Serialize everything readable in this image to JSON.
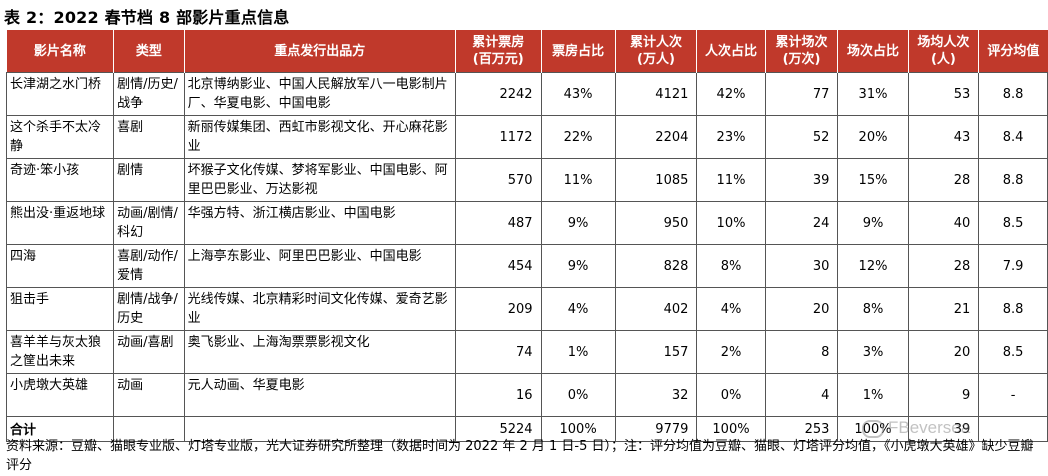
{
  "title": "表 2：2022 春节档 8 部影片重点信息",
  "header": {
    "film": "影片名称",
    "genre": "类型",
    "distributor": "重点发行出品方",
    "box_office": "累计票房\n(百万元)",
    "box_share": "票房占比",
    "admissions": "累计人次\n(万人)",
    "adm_share": "人次占比",
    "screenings": "累计场次\n(万次)",
    "scr_share": "场次占比",
    "per_screen": "场均人次\n(人)",
    "rating": "评分均值"
  },
  "rows": [
    {
      "film": "长津湖之水门桥",
      "genre": "剧情/历史/战争",
      "distributor": "北京博纳影业、中国人民解放军八一电影制片厂、华夏电影、中国电影",
      "box_office": "2242",
      "box_share": "43%",
      "admissions": "4121",
      "adm_share": "42%",
      "screenings": "77",
      "scr_share": "31%",
      "per_screen": "53",
      "rating": "8.8"
    },
    {
      "film": "这个杀手不太冷静",
      "genre": "喜剧",
      "distributor": "新丽传媒集团、西虹市影视文化、开心麻花影业",
      "box_office": "1172",
      "box_share": "22%",
      "admissions": "2204",
      "adm_share": "23%",
      "screenings": "52",
      "scr_share": "20%",
      "per_screen": "43",
      "rating": "8.4"
    },
    {
      "film": "奇迹·笨小孩",
      "genre": "剧情",
      "distributor": "坏猴子文化传媒、梦将军影业、中国电影、阿里巴巴影业、万达影视",
      "box_office": "570",
      "box_share": "11%",
      "admissions": "1085",
      "adm_share": "11%",
      "screenings": "39",
      "scr_share": "15%",
      "per_screen": "28",
      "rating": "8.8"
    },
    {
      "film": "熊出没·重返地球",
      "genre": "动画/剧情/科幻",
      "distributor": "华强方特、浙江横店影业、中国电影",
      "box_office": "487",
      "box_share": "9%",
      "admissions": "950",
      "adm_share": "10%",
      "screenings": "24",
      "scr_share": "9%",
      "per_screen": "40",
      "rating": "8.5"
    },
    {
      "film": "四海",
      "genre": "喜剧/动作/爱情",
      "distributor": "上海亭东影业、阿里巴巴影业、中国电影",
      "box_office": "454",
      "box_share": "9%",
      "admissions": "828",
      "adm_share": "8%",
      "screenings": "30",
      "scr_share": "12%",
      "per_screen": "28",
      "rating": "7.9"
    },
    {
      "film": "狙击手",
      "genre": "剧情/战争/历史",
      "distributor": "光线传媒、北京精彩时间文化传媒、爱奇艺影业",
      "box_office": "209",
      "box_share": "4%",
      "admissions": "402",
      "adm_share": "4%",
      "screenings": "20",
      "scr_share": "8%",
      "per_screen": "21",
      "rating": "8.8"
    },
    {
      "film": "喜羊羊与灰太狼之筐出未来",
      "genre": "动画/喜剧",
      "distributor": "奥飞影业、上海淘票票影视文化",
      "box_office": "74",
      "box_share": "1%",
      "admissions": "157",
      "adm_share": "2%",
      "screenings": "8",
      "scr_share": "3%",
      "per_screen": "20",
      "rating": "8.5"
    },
    {
      "film": "小虎墩大英雄",
      "genre": "动画",
      "distributor": "元人动画、华夏电影",
      "box_office": "16",
      "box_share": "0%",
      "admissions": "32",
      "adm_share": "0%",
      "screenings": "4",
      "scr_share": "1%",
      "per_screen": "9",
      "rating": "-"
    }
  ],
  "total": {
    "film": "合计",
    "genre": "",
    "distributor": "",
    "box_office": "5224",
    "box_share": "100%",
    "admissions": "9779",
    "adm_share": "100%",
    "screenings": "253",
    "scr_share": "100%",
    "per_screen": "39",
    "rating": ""
  },
  "source": "资料来源：豆瓣、猫眼专业版、灯塔专业版，光大证券研究所整理（数据时间为 2022 年 2 月 1 日-5 日）；注：评分均值为豆瓣、猫眼、灯塔评分均值，《小虎墩大英雄》缺少豆瓣评分",
  "watermark": "FBeversea",
  "colors": {
    "header_bg": "#c0392b",
    "header_text": "#ffffff"
  }
}
